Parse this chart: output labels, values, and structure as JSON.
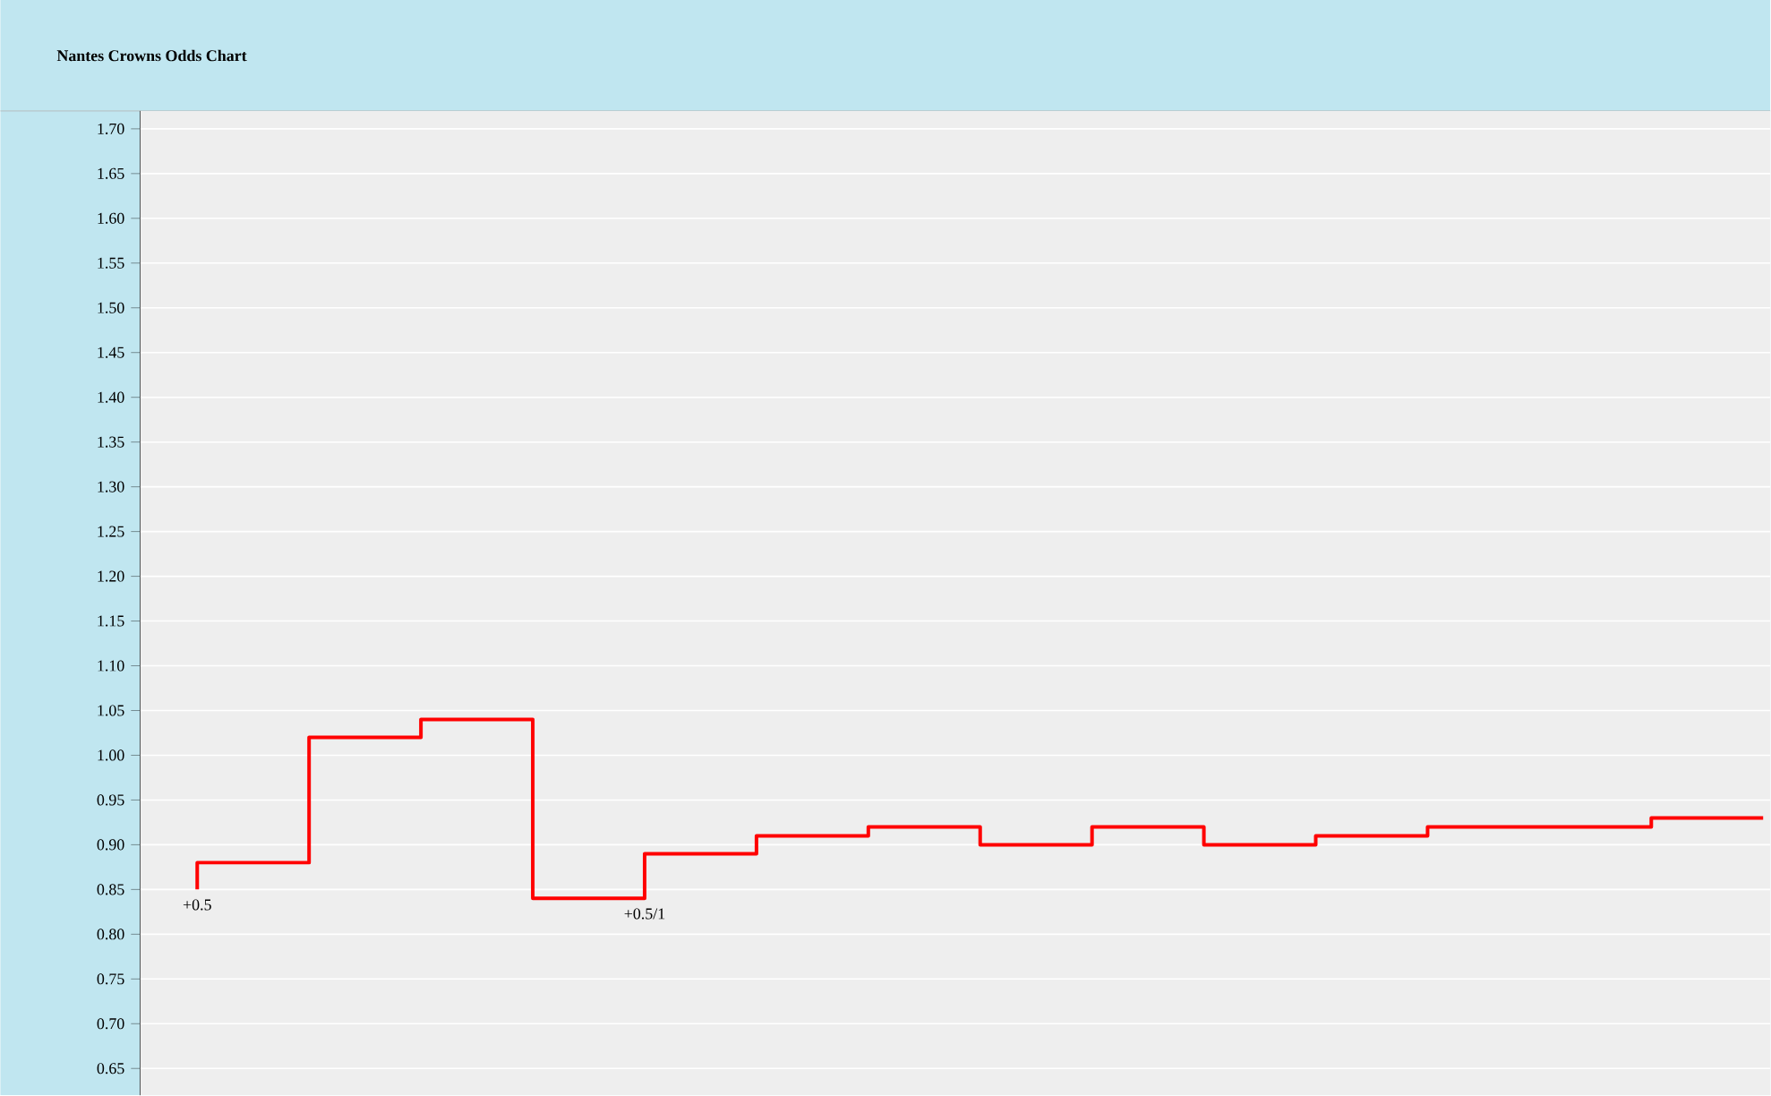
{
  "chart_data": {
    "type": "step",
    "title": "Nantes Crowns Odds Chart",
    "categories": [
      null,
      null,
      null,
      null,
      null,
      null,
      null,
      null,
      null,
      null,
      null,
      null,
      null,
      null,
      null
    ],
    "series": [
      {
        "color": "#ff0000",
        "values": [
          0.85,
          0.88,
          1.02,
          1.04,
          0.84,
          0.89,
          0.91,
          0.92,
          0.9,
          0.92,
          0.9,
          0.91,
          0.92,
          0.92,
          0.93
        ]
      }
    ],
    "ylim": [
      0.62,
      1.72
    ],
    "yticks": [
      {
        "value": 0.65,
        "label": "0.65"
      },
      {
        "value": 0.7,
        "label": "0.70"
      },
      {
        "value": 0.75,
        "label": "0.75"
      },
      {
        "value": 0.8,
        "label": "0.80"
      },
      {
        "value": 0.85,
        "label": "0.85"
      },
      {
        "value": 0.9,
        "label": "0.90"
      },
      {
        "value": 0.95,
        "label": "0.95"
      },
      {
        "value": 1.0,
        "label": "1.00"
      },
      {
        "value": 1.05,
        "label": "1.05"
      },
      {
        "value": 1.1,
        "label": "1.10"
      },
      {
        "value": 1.15,
        "label": "1.15"
      },
      {
        "value": 1.2,
        "label": "1.20"
      },
      {
        "value": 1.25,
        "label": "1.25"
      },
      {
        "value": 1.3,
        "label": "1.30"
      },
      {
        "value": 1.35,
        "label": "1.35"
      },
      {
        "value": 1.4,
        "label": "1.40"
      },
      {
        "value": 1.45,
        "label": "1.45"
      },
      {
        "value": 1.5,
        "label": "1.50"
      },
      {
        "value": 1.55,
        "label": "1.55"
      },
      {
        "value": 1.6,
        "label": "1.60"
      },
      {
        "value": 1.65,
        "label": "1.65"
      },
      {
        "value": 1.7,
        "label": "1.70"
      }
    ],
    "grid": "y",
    "annotations": [
      {
        "text": "+0.5",
        "y": 0.85
      },
      {
        "text": "+0.5/1",
        "y": 0.84
      }
    ]
  }
}
